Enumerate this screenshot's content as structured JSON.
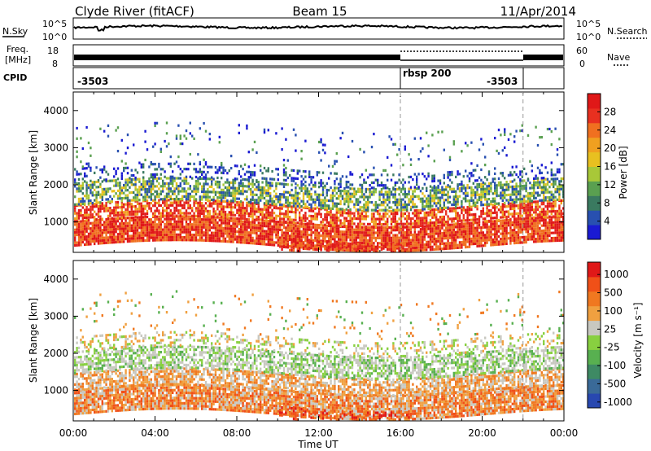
{
  "header": {
    "station": "Clyde River (fitACF)",
    "beam": "Beam 15",
    "date": "11/Apr/2014"
  },
  "nsky_panel": {
    "left_label": "N.Sky",
    "right_label": "N.Search",
    "left_ticks": [
      "10^5",
      "10^0"
    ],
    "right_ticks": [
      "10^5",
      "10^0"
    ]
  },
  "freq_panel": {
    "left_label_1": "Freq.",
    "left_label_2": "[MHz]",
    "right_label": "Nave",
    "left_ticks": [
      "18",
      "8"
    ],
    "right_ticks": [
      "60",
      "0"
    ]
  },
  "cpid_panel": {
    "label": "CPID",
    "segments": [
      {
        "text": "-3503",
        "start_hour": 0
      },
      {
        "text": "rbsp 200",
        "start_hour": 16
      },
      {
        "text": "-3503",
        "start_hour": 22
      }
    ]
  },
  "time_axis": {
    "label": "Time UT",
    "ticks": [
      "00:00",
      "04:00",
      "08:00",
      "12:00",
      "16:00",
      "20:00",
      "00:00"
    ]
  },
  "chart_data": [
    {
      "type": "heatmap",
      "title": "Power",
      "ylabel": "Slant Range [km]",
      "xlabel": "",
      "x_range_hours": [
        0,
        24
      ],
      "ylim": [
        180,
        4500
      ],
      "y_ticks": [
        1000,
        2000,
        3000,
        4000
      ],
      "colorbar": {
        "label": "Power [dB]",
        "range": [
          0,
          32
        ],
        "ticks": [
          "4",
          "8",
          "12",
          "16",
          "20",
          "24",
          "28"
        ],
        "colors": [
          "#1a1ad2",
          "#2850b0",
          "#3a7a60",
          "#5aa050",
          "#a8c838",
          "#e8c020",
          "#f0a020",
          "#f07020",
          "#e83020",
          "#e01818"
        ]
      },
      "vertical_markers_hours": [
        16,
        22
      ]
    },
    {
      "type": "heatmap",
      "title": "Velocity",
      "ylabel": "Slant Range [km]",
      "xlabel": "Time UT",
      "x_range_hours": [
        0,
        24
      ],
      "ylim": [
        180,
        4500
      ],
      "y_ticks": [
        1000,
        2000,
        3000,
        4000
      ],
      "colorbar": {
        "label": "Velocity [m s⁻¹]",
        "ticks": [
          "1000",
          "500",
          "100",
          "25",
          "-25",
          "-100",
          "-500",
          "-1000"
        ],
        "colors": [
          "#2848b0",
          "#3a6a98",
          "#3e8a64",
          "#58b050",
          "#88d040",
          "#c8c8c0",
          "#f0a040",
          "#f07820",
          "#f05018",
          "#e01818"
        ]
      },
      "vertical_markers_hours": [
        16,
        22
      ]
    }
  ]
}
